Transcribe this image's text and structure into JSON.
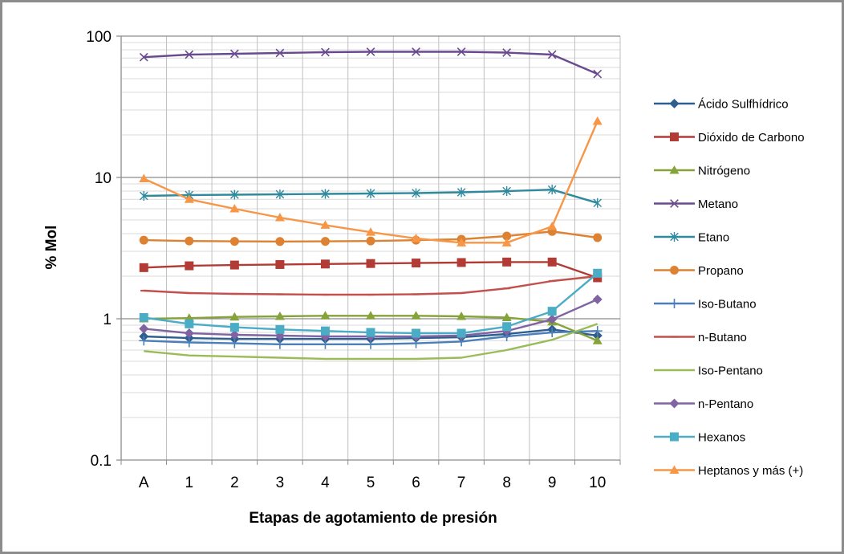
{
  "chart_data": {
    "type": "line",
    "title": "",
    "xlabel": "Etapas de agotamiento de presión",
    "ylabel": "% Mol",
    "yscale": "log",
    "ylim": [
      0.1,
      100
    ],
    "y_ticks": [
      "0.1",
      "1",
      "10",
      "100"
    ],
    "grid": "major and minor horizontal, vertical category lines",
    "legend": "right",
    "categories": [
      "A",
      "1",
      "2",
      "3",
      "4",
      "5",
      "6",
      "7",
      "8",
      "9",
      "10"
    ],
    "series": [
      {
        "name": "Ácido Sulfhídrico",
        "color": "#2e5e8f",
        "marker": "diamond",
        "values": [
          0.75,
          0.73,
          0.72,
          0.72,
          0.72,
          0.72,
          0.73,
          0.74,
          0.78,
          0.84,
          0.76
        ]
      },
      {
        "name": "Dióxido de Carbono",
        "color": "#b33b35",
        "marker": "square",
        "values": [
          2.3,
          2.37,
          2.4,
          2.42,
          2.44,
          2.46,
          2.48,
          2.5,
          2.52,
          2.52,
          1.95
        ]
      },
      {
        "name": "Nitrógeno",
        "color": "#86a23a",
        "marker": "triangle",
        "values": [
          1.0,
          1.01,
          1.03,
          1.04,
          1.05,
          1.05,
          1.05,
          1.04,
          1.02,
          0.95,
          0.7
        ]
      },
      {
        "name": "Metano",
        "color": "#6a4a8f",
        "marker": "x",
        "values": [
          71,
          74,
          75,
          76,
          77,
          77.5,
          77.5,
          77.5,
          76.5,
          74,
          54
        ]
      },
      {
        "name": "Etano",
        "color": "#2f8a9e",
        "marker": "star",
        "values": [
          7.4,
          7.5,
          7.55,
          7.6,
          7.65,
          7.7,
          7.75,
          7.85,
          8.0,
          8.2,
          6.6
        ]
      },
      {
        "name": "Propano",
        "color": "#dd8232",
        "marker": "circle",
        "values": [
          3.6,
          3.55,
          3.53,
          3.52,
          3.53,
          3.55,
          3.6,
          3.65,
          3.85,
          4.15,
          3.75
        ]
      },
      {
        "name": "Iso-Butano",
        "color": "#4a7fba",
        "marker": "plus",
        "values": [
          0.7,
          0.68,
          0.67,
          0.66,
          0.66,
          0.66,
          0.67,
          0.69,
          0.75,
          0.8,
          0.82
        ]
      },
      {
        "name": "n-Butano",
        "color": "#c4504d",
        "marker": "dash",
        "values": [
          1.58,
          1.52,
          1.5,
          1.49,
          1.48,
          1.48,
          1.49,
          1.52,
          1.64,
          1.85,
          2.0
        ]
      },
      {
        "name": "Iso-Pentano",
        "color": "#9bbb59",
        "marker": "none",
        "values": [
          0.59,
          0.55,
          0.54,
          0.53,
          0.52,
          0.52,
          0.52,
          0.53,
          0.6,
          0.71,
          0.92
        ]
      },
      {
        "name": "n-Pentano",
        "color": "#8064a2",
        "marker": "diamond",
        "values": [
          0.85,
          0.79,
          0.77,
          0.76,
          0.75,
          0.75,
          0.75,
          0.76,
          0.82,
          0.99,
          1.37
        ]
      },
      {
        "name": "Hexanos",
        "color": "#4bacc6",
        "marker": "square",
        "values": [
          1.02,
          0.92,
          0.87,
          0.84,
          0.82,
          0.8,
          0.79,
          0.79,
          0.88,
          1.13,
          2.1
        ]
      },
      {
        "name": "Heptanos y más (+)",
        "color": "#f79646",
        "marker": "triangle",
        "values": [
          9.8,
          7.0,
          6.0,
          5.2,
          4.6,
          4.1,
          3.7,
          3.45,
          3.45,
          4.5,
          25
        ]
      }
    ]
  }
}
